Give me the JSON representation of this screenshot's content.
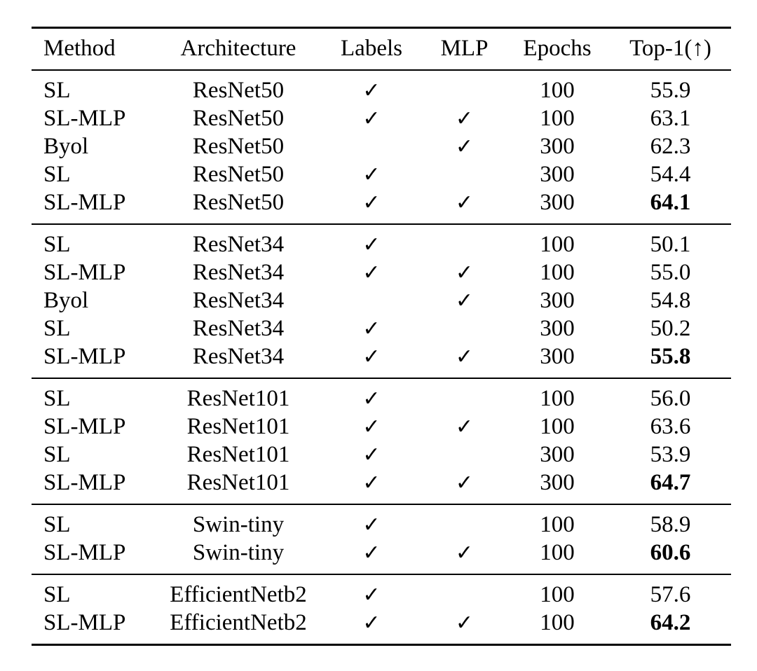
{
  "page": {
    "background_color": "#ffffff",
    "text_color": "#000000",
    "rule_color": "#000000"
  },
  "table": {
    "headers": [
      "Method",
      "Architecture",
      "Labels",
      "MLP",
      "Epochs",
      "Top-1(↑)"
    ],
    "check_icon": "✓",
    "groups": [
      {
        "rows": [
          {
            "method": "SL",
            "architecture": "ResNet50",
            "labels": true,
            "mlp": false,
            "epochs": "100",
            "top1": "55.9",
            "top1_bold": false
          },
          {
            "method": "SL-MLP",
            "architecture": "ResNet50",
            "labels": true,
            "mlp": true,
            "epochs": "100",
            "top1": "63.1",
            "top1_bold": false
          },
          {
            "method": "Byol",
            "architecture": "ResNet50",
            "labels": false,
            "mlp": true,
            "epochs": "300",
            "top1": "62.3",
            "top1_bold": false
          },
          {
            "method": "SL",
            "architecture": "ResNet50",
            "labels": true,
            "mlp": false,
            "epochs": "300",
            "top1": "54.4",
            "top1_bold": false
          },
          {
            "method": "SL-MLP",
            "architecture": "ResNet50",
            "labels": true,
            "mlp": true,
            "epochs": "300",
            "top1": "64.1",
            "top1_bold": true
          }
        ]
      },
      {
        "rows": [
          {
            "method": "SL",
            "architecture": "ResNet34",
            "labels": true,
            "mlp": false,
            "epochs": "100",
            "top1": "50.1",
            "top1_bold": false
          },
          {
            "method": "SL-MLP",
            "architecture": "ResNet34",
            "labels": true,
            "mlp": true,
            "epochs": "100",
            "top1": "55.0",
            "top1_bold": false
          },
          {
            "method": "Byol",
            "architecture": "ResNet34",
            "labels": false,
            "mlp": true,
            "epochs": "300",
            "top1": "54.8",
            "top1_bold": false
          },
          {
            "method": "SL",
            "architecture": "ResNet34",
            "labels": true,
            "mlp": false,
            "epochs": "300",
            "top1": "50.2",
            "top1_bold": false
          },
          {
            "method": "SL-MLP",
            "architecture": "ResNet34",
            "labels": true,
            "mlp": true,
            "epochs": "300",
            "top1": "55.8",
            "top1_bold": true
          }
        ]
      },
      {
        "rows": [
          {
            "method": "SL",
            "architecture": "ResNet101",
            "labels": true,
            "mlp": false,
            "epochs": "100",
            "top1": "56.0",
            "top1_bold": false
          },
          {
            "method": "SL-MLP",
            "architecture": "ResNet101",
            "labels": true,
            "mlp": true,
            "epochs": "100",
            "top1": "63.6",
            "top1_bold": false
          },
          {
            "method": "SL",
            "architecture": "ResNet101",
            "labels": true,
            "mlp": false,
            "epochs": "300",
            "top1": "53.9",
            "top1_bold": false
          },
          {
            "method": "SL-MLP",
            "architecture": "ResNet101",
            "labels": true,
            "mlp": true,
            "epochs": "300",
            "top1": "64.7",
            "top1_bold": true
          }
        ]
      },
      {
        "rows": [
          {
            "method": "SL",
            "architecture": "Swin-tiny",
            "labels": true,
            "mlp": false,
            "epochs": "100",
            "top1": "58.9",
            "top1_bold": false
          },
          {
            "method": "SL-MLP",
            "architecture": "Swin-tiny",
            "labels": true,
            "mlp": true,
            "epochs": "100",
            "top1": "60.6",
            "top1_bold": true
          }
        ]
      },
      {
        "rows": [
          {
            "method": "SL",
            "architecture": "EfficientNetb2",
            "labels": true,
            "mlp": false,
            "epochs": "100",
            "top1": "57.6",
            "top1_bold": false
          },
          {
            "method": "SL-MLP",
            "architecture": "EfficientNetb2",
            "labels": true,
            "mlp": true,
            "epochs": "100",
            "top1": "64.2",
            "top1_bold": true
          }
        ]
      }
    ]
  }
}
